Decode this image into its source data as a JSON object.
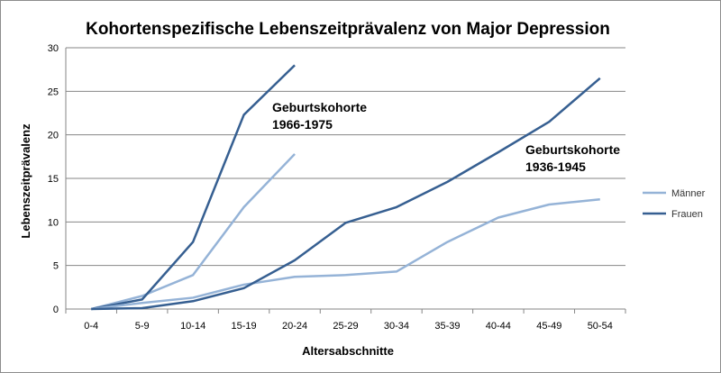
{
  "chart_data": {
    "type": "line",
    "title": "Kohortenspezifische Lebenszeitprävalenz von Major Depression",
    "xlabel": "Altersabschnitte",
    "ylabel": "Lebenszeitprävalenz",
    "categories": [
      "0-4",
      "5-9",
      "10-14",
      "15-19",
      "20-24",
      "25-29",
      "30-34",
      "35-39",
      "40-44",
      "45-49",
      "50-54"
    ],
    "ylim": [
      0,
      30
    ],
    "yticks": [
      "0",
      "5",
      "10",
      "15",
      "20",
      "25",
      "30"
    ],
    "grid": true,
    "legend_position": "right",
    "legend": [
      {
        "label": "Männer",
        "color": "#95b3d7"
      },
      {
        "label": "Frauen",
        "color": "#365f91"
      }
    ],
    "annotations": [
      {
        "line1": "Geburtskohorte",
        "line2": "1966-1975"
      },
      {
        "line1": "Geburtskohorte",
        "line2": "1936-1945"
      }
    ],
    "series": [
      {
        "cohort": "1966-1975",
        "group": "Männer",
        "color": "#95b3d7",
        "values": [
          0,
          1.5,
          3.9,
          11.7,
          17.8,
          null,
          null,
          null,
          null,
          null,
          null
        ]
      },
      {
        "cohort": "1966-1975",
        "group": "Frauen",
        "color": "#365f91",
        "values": [
          0,
          1.1,
          7.7,
          22.3,
          28.0,
          null,
          null,
          null,
          null,
          null,
          null
        ]
      },
      {
        "cohort": "1936-1945",
        "group": "Männer",
        "color": "#95b3d7",
        "values": [
          0,
          0.7,
          1.3,
          2.8,
          3.7,
          3.9,
          4.3,
          7.7,
          10.5,
          12.0,
          12.6
        ]
      },
      {
        "cohort": "1936-1945",
        "group": "Frauen",
        "color": "#365f91",
        "values": [
          0,
          0.1,
          0.9,
          2.4,
          5.6,
          9.9,
          11.7,
          14.6,
          18.0,
          21.5,
          26.5
        ]
      }
    ]
  }
}
